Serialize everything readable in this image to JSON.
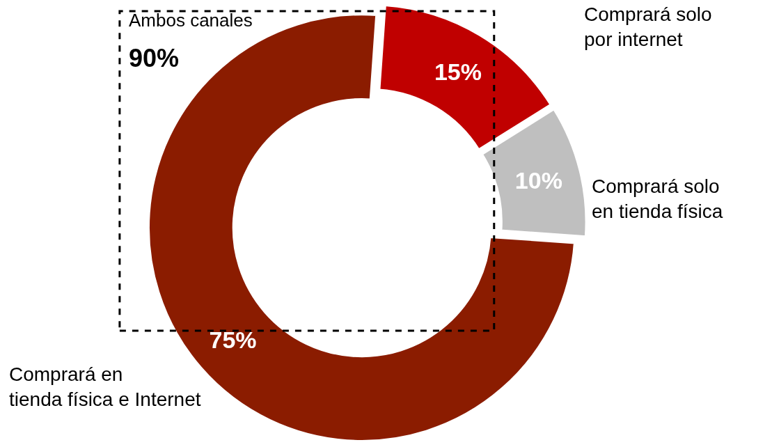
{
  "chart_data": {
    "type": "donut",
    "categories": [
      "Comprará solo por internet",
      "Comprará solo en tienda física",
      "Comprará en tienda física e Internet"
    ],
    "values": [
      15,
      10,
      75
    ],
    "colors": [
      "#c00000",
      "#bfbfbf",
      "#8b1c00"
    ],
    "value_labels": [
      "15%",
      "10%",
      "75%"
    ],
    "annotations": [
      "Ambos canales",
      "90%"
    ],
    "legend": false
  }
}
